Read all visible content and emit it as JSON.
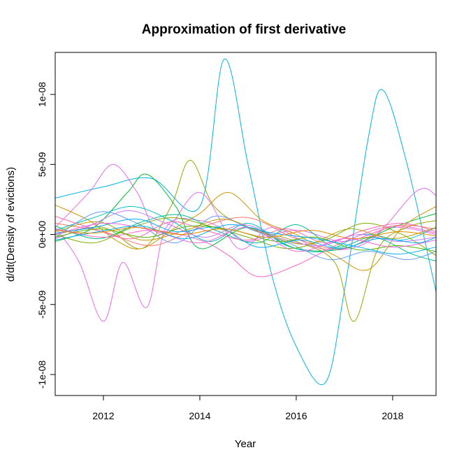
{
  "chart_data": {
    "type": "line",
    "title": "Approximation of first derivative",
    "xlabel": "Year",
    "ylabel": "d/dt(Density of evictions)",
    "xlim": [
      2011.0,
      2018.9
    ],
    "ylim": [
      -1.15e-08,
      1.3e-08
    ],
    "x_ticks": [
      2012,
      2014,
      2016,
      2018
    ],
    "x_tick_labels": [
      "2012",
      "2014",
      "2016",
      "2018"
    ],
    "y_ticks": [
      -1e-08,
      -5e-09,
      0,
      5e-09,
      1e-08
    ],
    "y_tick_labels": [
      "-1e-08",
      "-5e-09",
      "0e+00",
      "5e-09",
      "1e-08"
    ],
    "legend": "none",
    "grid": false,
    "series": [
      {
        "color": "#00B5E2",
        "x": [
          2011.0,
          2012.0,
          2013.0,
          2014.0,
          2014.5,
          2015.0,
          2015.5,
          2016.0,
          2016.6,
          2017.0,
          2017.5,
          2017.8,
          2018.3,
          2018.9
        ],
        "y": [
          2.6e-09,
          3.4e-09,
          4e-09,
          2e-09,
          1.25e-08,
          5e-09,
          -3e-09,
          -8e-09,
          -1.06e-08,
          -4e-09,
          7e-09,
          1.03e-08,
          5e-09,
          -4.1e-09
        ]
      },
      {
        "color": "#E76BF3",
        "x": [
          2011.0,
          2011.5,
          2012.0,
          2012.4,
          2012.9,
          2013.3,
          2014.0,
          2014.6,
          2015.0,
          2016.0,
          2017.0,
          2018.0,
          2018.9
        ],
        "y": [
          5e-10,
          -2e-09,
          -6.2e-09,
          -2e-09,
          -5.2e-09,
          5e-10,
          1e-09,
          2e-10,
          -5e-10,
          3e-10,
          -5e-10,
          5e-10,
          0.0
        ]
      },
      {
        "color": "#E76BF3",
        "x": [
          2011.0,
          2011.7,
          2012.2,
          2012.7,
          2013.2,
          2014.0,
          2014.8,
          2015.5,
          2016.5,
          2017.5,
          2018.5,
          2018.9
        ],
        "y": [
          5e-10,
          3e-09,
          5e-09,
          3e-09,
          0.0,
          3e-09,
          -1e-09,
          5e-10,
          -1e-09,
          -5e-10,
          3.1e-09,
          2.8e-09
        ]
      },
      {
        "color": "#9AA400",
        "x": [
          2011.0,
          2012.0,
          2012.8,
          2013.4,
          2013.8,
          2014.3,
          2015.0,
          2016.0,
          2016.8,
          2017.2,
          2017.7,
          2018.3,
          2018.9
        ],
        "y": [
          0.0,
          5e-10,
          -1e-09,
          2e-09,
          5.3e-09,
          2e-09,
          5e-10,
          -5e-10,
          -2e-09,
          -6.2e-09,
          -1e-09,
          5e-10,
          1e-09
        ]
      },
      {
        "color": "#00BA38",
        "x": [
          2011.0,
          2011.8,
          2012.5,
          2012.9,
          2013.5,
          2014.0,
          2015.0,
          2016.0,
          2017.0,
          2018.0,
          2018.9
        ],
        "y": [
          -5e-10,
          5e-10,
          3e-09,
          4.3e-09,
          2e-09,
          -1e-09,
          5e-10,
          -1e-09,
          -1e-09,
          5e-10,
          1.5e-09
        ]
      },
      {
        "color": "#CD9600",
        "x": [
          2011.0,
          2011.7,
          2012.3,
          2012.8,
          2013.5,
          2014.0,
          2014.6,
          2015.3,
          2016.0,
          2016.8,
          2017.5,
          2018.2,
          2018.9
        ],
        "y": [
          2.1e-09,
          1e-09,
          -5e-10,
          -1e-09,
          5e-10,
          1.5e-09,
          3e-09,
          1e-09,
          0.0,
          -1.5e-09,
          -2.5e-09,
          5e-10,
          2e-09
        ]
      },
      {
        "color": "#F8766D",
        "x": [
          2011.0,
          2012.0,
          2013.0,
          2014.0,
          2015.0,
          2016.0,
          2017.0,
          2018.0,
          2018.9
        ],
        "y": [
          8e-10,
          2e-10,
          -8e-10,
          5e-10,
          1.2e-09,
          -3e-10,
          -1e-09,
          6e-10,
          4e-10
        ]
      },
      {
        "color": "#00BFC4",
        "x": [
          2011.0,
          2011.8,
          2012.6,
          2013.4,
          2014.2,
          2015.0,
          2015.8,
          2016.6,
          2017.4,
          2018.2,
          2018.9
        ],
        "y": [
          3e-10,
          1.2e-09,
          2e-09,
          1e-09,
          -5e-10,
          8e-10,
          -8e-10,
          -1.2e-09,
          0.0,
          -4e-10,
          5e-10
        ]
      },
      {
        "color": "#619CFF",
        "x": [
          2011.0,
          2011.9,
          2012.7,
          2013.5,
          2014.3,
          2015.1,
          2015.9,
          2016.7,
          2017.5,
          2018.3,
          2018.9
        ],
        "y": [
          -2e-10,
          1.6e-09,
          8e-10,
          -6e-10,
          1.3e-09,
          3e-10,
          -7e-10,
          -1.8e-09,
          -1.2e-09,
          -1.8e-09,
          -1.2e-09
        ]
      },
      {
        "color": "#00C08B",
        "x": [
          2011.0,
          2011.9,
          2012.8,
          2013.6,
          2014.4,
          2015.2,
          2016.0,
          2016.8,
          2017.6,
          2018.4,
          2018.9
        ],
        "y": [
          6e-10,
          -3e-10,
          9e-10,
          1.4e-09,
          2e-10,
          -6e-10,
          7e-10,
          -9e-10,
          -2e-10,
          -1.4e-09,
          -1.9e-09
        ]
      },
      {
        "color": "#7CAE00",
        "x": [
          2011.0,
          2011.8,
          2012.6,
          2013.4,
          2014.2,
          2015.0,
          2015.8,
          2016.6,
          2017.4,
          2018.2,
          2018.9
        ],
        "y": [
          0.0,
          -6e-10,
          5e-10,
          1.2e-09,
          6e-10,
          -2e-10,
          -1e-09,
          -4e-10,
          8e-10,
          0.0,
          -1.5e-09
        ]
      },
      {
        "color": "#FF64B0",
        "x": [
          2011.0,
          2011.8,
          2012.6,
          2013.4,
          2014.2,
          2015.0,
          2015.8,
          2016.6,
          2017.4,
          2018.2,
          2018.9
        ],
        "y": [
          1.3e-09,
          4e-10,
          -3e-10,
          9e-10,
          2e-10,
          -4e-10,
          4e-10,
          -6e-10,
          3e-10,
          8e-10,
          2e-10
        ]
      },
      {
        "color": "#B79F00",
        "x": [
          2011.0,
          2011.9,
          2012.8,
          2013.7,
          2014.5,
          2015.3,
          2016.2,
          2017.1,
          2018.0,
          2018.9
        ],
        "y": [
          2e-10,
          9e-10,
          -4e-10,
          3e-10,
          1.1e-09,
          1e-10,
          -7e-10,
          4e-10,
          -3e-10,
          5e-10
        ]
      },
      {
        "color": "#C77CFF",
        "x": [
          2011.0,
          2011.7,
          2012.5,
          2013.3,
          2014.1,
          2014.9,
          2015.7,
          2016.5,
          2017.3,
          2018.1,
          2018.9
        ],
        "y": [
          -3e-10,
          6e-10,
          1.7e-09,
          8e-10,
          -2e-10,
          7e-10,
          -3e-10,
          -8e-10,
          0.0,
          -5e-10,
          -2e-10
        ]
      },
      {
        "color": "#FF61C3",
        "x": [
          2011.0,
          2012.0,
          2013.0,
          2014.0,
          2014.6,
          2015.2,
          2016.0,
          2017.0,
          2018.0,
          2018.9
        ],
        "y": [
          4e-10,
          -2e-10,
          3e-10,
          -4e-10,
          -1.5e-09,
          -3e-09,
          -2.2e-09,
          -5e-10,
          6e-10,
          1e-10
        ]
      },
      {
        "color": "#00A9FF",
        "x": [
          2011.0,
          2011.8,
          2012.7,
          2013.5,
          2014.4,
          2015.2,
          2016.1,
          2016.9,
          2017.7,
          2018.5,
          2018.9
        ],
        "y": [
          1e-10,
          5e-10,
          1.1e-09,
          2e-10,
          5e-10,
          -9e-10,
          -4e-10,
          -1e-09,
          -3e-10,
          -6e-10,
          -2e-10
        ]
      },
      {
        "color": "#53B400",
        "x": [
          2011.0,
          2011.9,
          2012.9,
          2013.8,
          2014.7,
          2015.6,
          2016.4,
          2017.3,
          2018.1,
          2018.9
        ],
        "y": [
          -2e-10,
          4e-10,
          -2e-10,
          6e-10,
          3e-10,
          -5e-10,
          -2e-10,
          -1.1e-09,
          -8e-10,
          -1.2e-09
        ]
      },
      {
        "color": "#F564E3",
        "x": [
          2011.0,
          2012.0,
          2013.0,
          2014.0,
          2015.0,
          2016.0,
          2017.0,
          2018.0,
          2018.9
        ],
        "y": [
          0.0,
          8e-10,
          3e-10,
          -6e-10,
          5e-10,
          -1.2e-09,
          -3e-10,
          -9e-10,
          -4e-10
        ]
      },
      {
        "color": "#00B0F6",
        "x": [
          2011.0,
          2011.9,
          2012.8,
          2013.7,
          2014.6,
          2015.5,
          2016.4,
          2017.3,
          2018.1,
          2018.9
        ],
        "y": [
          -4e-10,
          2e-10,
          6e-10,
          -3e-10,
          7e-10,
          1e-10,
          -3e-10,
          -9e-10,
          -1.4e-09,
          -9e-10
        ]
      },
      {
        "color": "#E58700",
        "x": [
          2011.0,
          2011.8,
          2012.7,
          2013.6,
          2014.5,
          2015.4,
          2016.3,
          2017.2,
          2018.1,
          2018.9
        ],
        "y": [
          3e-10,
          1e-10,
          5e-10,
          0.0,
          4e-10,
          -2e-10,
          3e-10,
          -3e-10,
          2e-10,
          -1e-10
        ]
      }
    ]
  }
}
